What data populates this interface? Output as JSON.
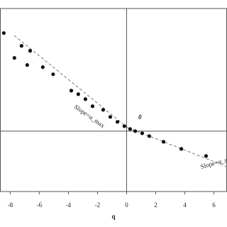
{
  "chart_data": {
    "type": "scatter",
    "x_label": "q",
    "annotations": [
      "Slope=α_max",
      "Slope=α_min",
      "0"
    ],
    "color": "#111111",
    "x": [
      -8.44,
      -7.22,
      -6.63,
      -7.71,
      -6.83,
      -5.76,
      -5.05,
      -3.8,
      -3.32,
      -2.83,
      -2.34,
      -1.61,
      -1.12,
      -0.63,
      -0.15,
      0.24,
      0.59,
      1.07,
      1.56,
      2.54,
      3.76,
      5.46
    ],
    "values": [
      5.52,
      4.8,
      4.52,
      4.12,
      3.72,
      3.6,
      3.2,
      2.28,
      2.08,
      1.8,
      1.4,
      1.2,
      0.8,
      0.52,
      0.28,
      0.12,
      0,
      -0.12,
      -0.28,
      -0.6,
      -1.0,
      -1.4
    ],
    "xlim": [
      -8.7,
      6.9
    ],
    "ylim": [
      -3.4,
      6.9
    ],
    "xticks": [
      -8,
      -6,
      -4,
      -2,
      0,
      2,
      4,
      6
    ]
  }
}
